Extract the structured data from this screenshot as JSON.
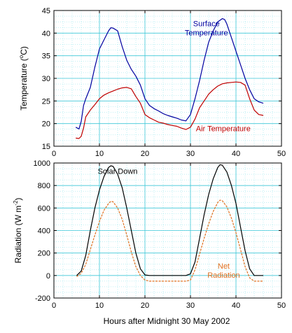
{
  "chart_data": [
    {
      "type": "line",
      "xlabel": "",
      "ylabel": "Temperature (°C)",
      "ylabel_parts": {
        "main": "Temperature (",
        "sup": "o",
        "unit": "C)"
      },
      "xlim": [
        0,
        50
      ],
      "ylim": [
        15,
        45
      ],
      "xticks": [
        0,
        10,
        20,
        30,
        40,
        50
      ],
      "yticks": [
        15,
        20,
        25,
        30,
        35,
        40,
        45
      ],
      "grid": true,
      "series": [
        {
          "name": "Surface Temperature",
          "color": "#0000a0",
          "x": [
            4.8,
            5.5,
            6,
            6.5,
            7,
            8,
            9,
            10,
            11,
            12,
            12.5,
            13,
            14,
            15,
            16,
            17,
            18,
            19,
            20,
            21,
            22,
            23,
            24,
            25,
            26,
            27,
            28,
            29,
            30,
            31,
            32,
            33,
            34,
            35,
            36,
            37,
            37.5,
            38,
            39,
            40,
            41,
            42,
            43,
            44,
            45,
            46
          ],
          "y": [
            19.2,
            18.8,
            20.5,
            24,
            25.5,
            28,
            32.5,
            36.5,
            38.5,
            40.5,
            41.2,
            41.1,
            40.5,
            37,
            34,
            32,
            30.5,
            28.5,
            25.5,
            24,
            23.3,
            22.8,
            22.2,
            21.8,
            21.5,
            21.2,
            20.8,
            20.6,
            22,
            25.5,
            29.5,
            34,
            38,
            40.5,
            42.5,
            43.2,
            43,
            42,
            39,
            36,
            33,
            30,
            27.5,
            25.5,
            24.8,
            24.5
          ]
        },
        {
          "name": "Air Temperature",
          "color": "#c00000",
          "x": [
            4.8,
            5.5,
            6,
            6.5,
            7,
            8,
            9,
            10,
            11,
            12,
            13,
            14,
            15,
            16,
            17,
            18,
            19,
            20,
            21,
            22,
            23,
            24,
            25,
            26,
            27,
            28,
            29,
            30,
            31,
            32,
            33,
            34,
            35,
            36,
            37,
            38,
            39,
            40,
            41,
            42,
            43,
            44,
            45,
            46
          ],
          "y": [
            16.8,
            16.7,
            17.2,
            19,
            21.5,
            23,
            24.2,
            25.5,
            26.3,
            26.8,
            27.2,
            27.6,
            27.9,
            28,
            27.7,
            26,
            24.5,
            22,
            21.3,
            20.8,
            20.3,
            20.1,
            19.8,
            19.6,
            19.4,
            19,
            18.7,
            19.2,
            21,
            23.5,
            25,
            26.5,
            27.5,
            28.3,
            28.8,
            29,
            29.1,
            29.2,
            29.1,
            28.5,
            25.5,
            23,
            22,
            21.8
          ]
        }
      ],
      "annotations": [
        {
          "text_lines": [
            "Surface",
            "Temperature"
          ],
          "x": 33.5,
          "y": 41.5,
          "color": "#0000a0"
        },
        {
          "text_lines": [
            "Air Temperature"
          ],
          "x": 37.2,
          "y": 18.3,
          "color": "#c00000"
        }
      ]
    },
    {
      "type": "line",
      "xlabel": "Hours after Midnight 30 May 2002",
      "ylabel": "Radiation (W m⁻²)",
      "ylabel_parts": {
        "main": "Radiation (W m",
        "sup": "-2",
        "unit": ")"
      },
      "xlim": [
        0,
        50
      ],
      "ylim": [
        -200,
        1000
      ],
      "xticks": [
        0,
        10,
        20,
        30,
        40,
        50
      ],
      "yticks": [
        -200,
        0,
        200,
        400,
        600,
        800,
        1000
      ],
      "grid": true,
      "series": [
        {
          "name": "Solar Down",
          "color": "#000000",
          "x": [
            5,
            6,
            7,
            8,
            9,
            10,
            11,
            12,
            12.5,
            13,
            14,
            15,
            16,
            17,
            18,
            19,
            20,
            21,
            22,
            24,
            26,
            28,
            29,
            30,
            31,
            32,
            33,
            34,
            35,
            36,
            36.5,
            37,
            38,
            39,
            40,
            41,
            42,
            43,
            44,
            45,
            46
          ],
          "y": [
            0,
            40,
            180,
            400,
            600,
            760,
            880,
            960,
            975,
            970,
            900,
            780,
            600,
            400,
            200,
            60,
            5,
            0,
            0,
            0,
            0,
            0,
            0,
            15,
            120,
            330,
            540,
            720,
            860,
            960,
            985,
            980,
            920,
            800,
            640,
            430,
            220,
            60,
            0,
            0,
            0
          ]
        },
        {
          "name": "Net Radiation",
          "color": "#e07020",
          "x": [
            5,
            6,
            7,
            8,
            9,
            10,
            11,
            12,
            12.5,
            13,
            14,
            15,
            16,
            17,
            18,
            19,
            20,
            21,
            22,
            24,
            26,
            28,
            29,
            30,
            31,
            32,
            33,
            34,
            35,
            36,
            36.5,
            37,
            38,
            39,
            40,
            41,
            42,
            43,
            44,
            45,
            46
          ],
          "y": [
            -10,
            20,
            100,
            230,
            360,
            480,
            580,
            640,
            660,
            655,
            600,
            500,
            360,
            210,
            80,
            0,
            -40,
            -50,
            -50,
            -50,
            -50,
            -50,
            -50,
            -40,
            50,
            190,
            330,
            460,
            570,
            650,
            670,
            665,
            610,
            510,
            380,
            230,
            80,
            -20,
            -50,
            -50,
            -50
          ]
        }
      ],
      "annotations": [
        {
          "text_lines": [
            "Solar Down"
          ],
          "x": 14,
          "y": 905,
          "color": "#000000"
        },
        {
          "text_lines": [
            "Net",
            "Radiation"
          ],
          "x": 37.3,
          "y": 60,
          "color": "#e07020"
        }
      ]
    }
  ]
}
